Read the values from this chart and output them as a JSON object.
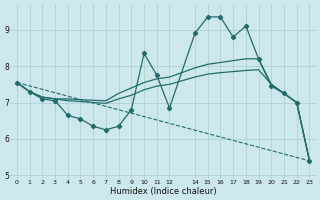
{
  "xlabel": "Humidex (Indice chaleur)",
  "bg_color": "#cde8ec",
  "grid_color": "#aacccc",
  "line_color": "#236b6b",
  "xlim": [
    -0.5,
    23.5
  ],
  "ylim": [
    4.9,
    9.7
  ],
  "yticks": [
    5,
    6,
    7,
    8,
    9
  ],
  "xticks": [
    0,
    1,
    2,
    3,
    4,
    5,
    6,
    7,
    8,
    9,
    10,
    11,
    12,
    14,
    15,
    16,
    17,
    18,
    19,
    20,
    21,
    22,
    23
  ],
  "line_marker": {
    "x": [
      0,
      1,
      2,
      3,
      4,
      5,
      6,
      7,
      8,
      9,
      10,
      11,
      12,
      14,
      15,
      16,
      17,
      18,
      19,
      20,
      21,
      22,
      23
    ],
    "y": [
      7.55,
      7.3,
      7.1,
      7.05,
      6.65,
      6.55,
      6.35,
      6.25,
      6.35,
      6.8,
      8.35,
      7.75,
      6.85,
      8.9,
      9.35,
      9.35,
      8.8,
      9.1,
      8.2,
      7.45,
      7.25,
      7.0,
      5.4
    ]
  },
  "line_upper": {
    "x": [
      0,
      1,
      2,
      3,
      4,
      5,
      6,
      7,
      8,
      9,
      10,
      11,
      12,
      14,
      15,
      16,
      17,
      18,
      19,
      20,
      21,
      22,
      23
    ],
    "y": [
      7.55,
      7.3,
      7.15,
      7.1,
      7.1,
      7.08,
      7.06,
      7.05,
      7.25,
      7.4,
      7.55,
      7.65,
      7.7,
      7.95,
      8.05,
      8.1,
      8.15,
      8.2,
      8.2,
      7.5,
      7.25,
      7.0,
      5.4
    ]
  },
  "line_mid": {
    "x": [
      0,
      1,
      2,
      3,
      4,
      5,
      6,
      7,
      8,
      9,
      10,
      11,
      12,
      14,
      15,
      16,
      17,
      18,
      19,
      20,
      21,
      22,
      23
    ],
    "y": [
      7.55,
      7.3,
      7.15,
      7.1,
      7.05,
      7.03,
      7.0,
      6.98,
      7.1,
      7.2,
      7.35,
      7.45,
      7.5,
      7.7,
      7.78,
      7.82,
      7.85,
      7.88,
      7.9,
      7.5,
      7.25,
      7.0,
      5.4
    ]
  },
  "line_dashed": {
    "x": [
      0,
      23
    ],
    "y": [
      7.55,
      5.4
    ]
  }
}
